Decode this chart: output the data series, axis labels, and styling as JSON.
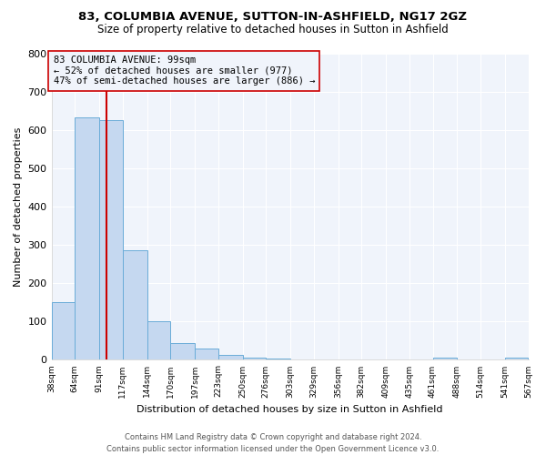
{
  "title": "83, COLUMBIA AVENUE, SUTTON-IN-ASHFIELD, NG17 2GZ",
  "subtitle": "Size of property relative to detached houses in Sutton in Ashfield",
  "xlabel": "Distribution of detached houses by size in Sutton in Ashfield",
  "ylabel": "Number of detached properties",
  "bin_edges": [
    38,
    64,
    91,
    117,
    144,
    170,
    197,
    223,
    250,
    276,
    303,
    329,
    356,
    382,
    409,
    435,
    461,
    488,
    514,
    541,
    567
  ],
  "bin_heights": [
    150,
    633,
    627,
    287,
    101,
    44,
    30,
    13,
    5,
    4,
    0,
    0,
    0,
    0,
    0,
    0,
    5,
    0,
    0,
    5
  ],
  "bar_color": "#c5d8f0",
  "bar_edge_color": "#6aacd8",
  "property_value": 99,
  "vline_color": "#cc0000",
  "annotation_text": "83 COLUMBIA AVENUE: 99sqm\n← 52% of detached houses are smaller (977)\n47% of semi-detached houses are larger (886) →",
  "annotation_box_edge": "#cc0000",
  "ylim": [
    0,
    800
  ],
  "yticks": [
    0,
    100,
    200,
    300,
    400,
    500,
    600,
    700,
    800
  ],
  "tick_labels": [
    "38sqm",
    "64sqm",
    "91sqm",
    "117sqm",
    "144sqm",
    "170sqm",
    "197sqm",
    "223sqm",
    "250sqm",
    "276sqm",
    "303sqm",
    "329sqm",
    "356sqm",
    "382sqm",
    "409sqm",
    "435sqm",
    "461sqm",
    "488sqm",
    "514sqm",
    "541sqm",
    "567sqm"
  ],
  "footer_text": "Contains HM Land Registry data © Crown copyright and database right 2024.\nContains public sector information licensed under the Open Government Licence v3.0.",
  "background_color": "#ffffff",
  "plot_bg_color": "#f0f4fb",
  "grid_color": "#ffffff"
}
